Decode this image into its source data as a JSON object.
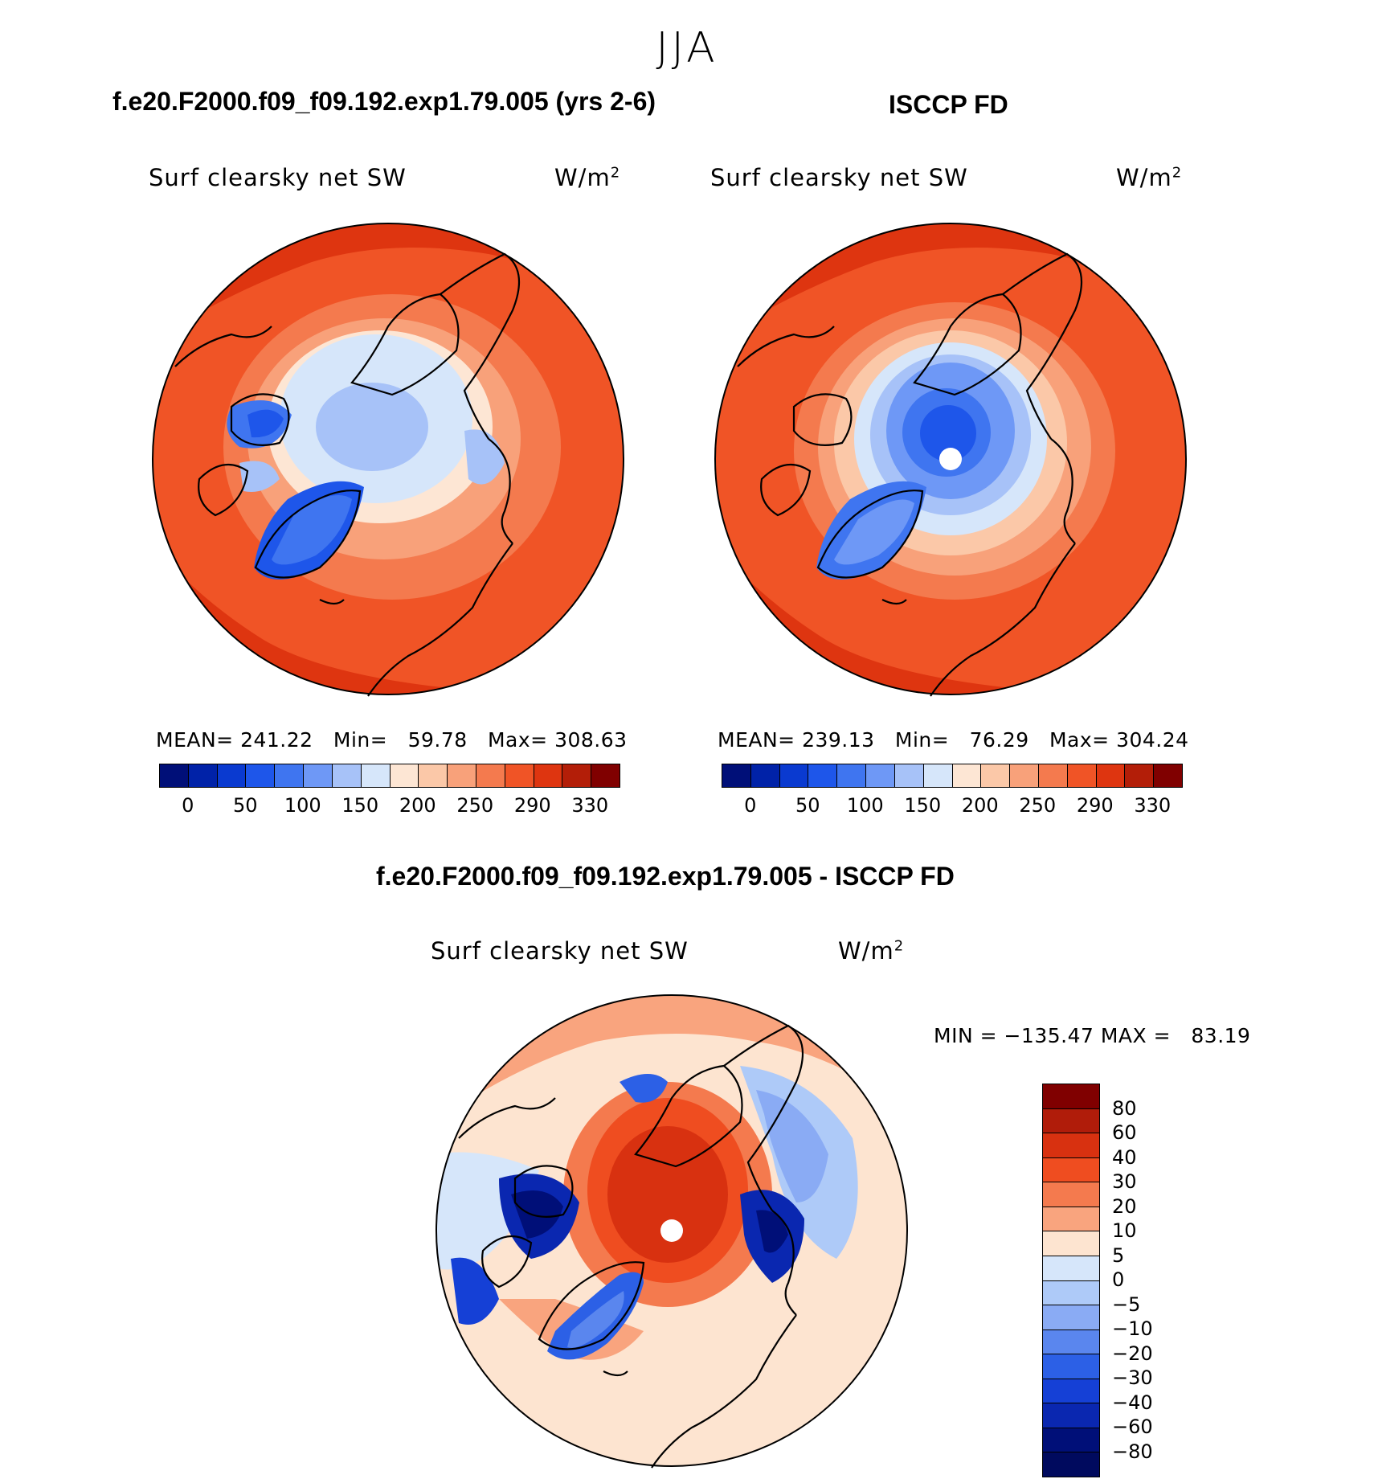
{
  "season": "JJA",
  "panels": [
    {
      "title": "f.e20.F2000.f09_f09.192.exp1.79.005 (yrs 2-6)",
      "variable": "Surf clearsky net SW",
      "units_base": "W/m",
      "units_exp": "2",
      "stats": {
        "mean_label": "MEAN=",
        "mean": "241.22",
        "min_label": "Min=",
        "min": "59.78",
        "max_label": "Max=",
        "max": "308.63"
      }
    },
    {
      "title": "ISCCP FD",
      "variable": "Surf clearsky net SW",
      "units_base": "W/m",
      "units_exp": "2",
      "stats": {
        "mean_label": "MEAN=",
        "mean": "239.13",
        "min_label": "Min=",
        "min": "76.29",
        "max_label": "Max=",
        "max": "304.24"
      }
    }
  ],
  "diff_panel": {
    "title": "f.e20.F2000.f09_f09.192.exp1.79.005 - ISCCP FD",
    "variable": "Surf clearsky net SW",
    "units_base": "W/m",
    "units_exp": "2",
    "minmax_text": "MIN = −135.47 MAX =   83.19"
  },
  "colorbar_abs": {
    "colors": [
      "#000f78",
      "#0022a8",
      "#0a3ad0",
      "#1e56ea",
      "#3f75f0",
      "#6e98f6",
      "#a7c2f8",
      "#d6e6fa",
      "#fde6d4",
      "#fbc8a8",
      "#f8a17a",
      "#f47a4e",
      "#f05426",
      "#de3510",
      "#b31e08",
      "#800000"
    ],
    "labels": [
      "0",
      "50",
      "100",
      "150",
      "200",
      "250",
      "290",
      "330"
    ]
  },
  "colorbar_diff": {
    "colors": [
      "#800000",
      "#b01c0a",
      "#d83110",
      "#ef4d20",
      "#f47a4e",
      "#f9a47e",
      "#fde4d0",
      "#d6e6fa",
      "#aecaf8",
      "#8aabf4",
      "#5a86ee",
      "#2c60e6",
      "#1540d6",
      "#0a27b0",
      "#000f78"
    ],
    "labels": [
      "80",
      "60",
      "40",
      "30",
      "20",
      "10",
      "5",
      "0",
      "−5",
      "−10",
      "−20",
      "−30",
      "−40",
      "−60",
      "−80"
    ]
  },
  "map_regions": {
    "model": "Arctic polar stereographic; ice/Greenland low values (blue), ocean/land high (red)",
    "obs": "Arctic polar stereographic; central Arctic low (blue) with pole hole",
    "diff": "Central Arctic positive (red), Greenland/Canadian archipelago/Siberian coast negative (blue)"
  }
}
